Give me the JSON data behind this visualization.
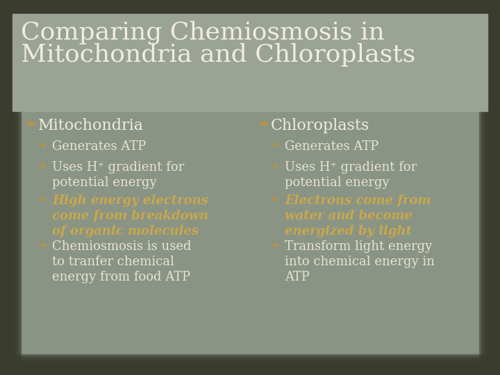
{
  "title_line1": "Comparing Chemiosmosis in",
  "title_line2": "Mitochondria and Chloroplasts",
  "background_color": "#8a9485",
  "border_dark": "#3a3d2e",
  "border_light": "#c8c9b8",
  "title_color": "#f0ece0",
  "bullet_symbol_color": "#b8963c",
  "header_color": "#f0ece0",
  "normal_text_color": "#e8e4d0",
  "italic_text_color": "#c8a84b",
  "left_header": "Mitochondria",
  "right_header": "Chloroplasts",
  "left_bullets": [
    {
      "text": "Generates ATP",
      "italic": false
    },
    {
      "text": "Uses H⁺ gradient for\npotential energy",
      "italic": false
    },
    {
      "text": "High energy electrons\ncome from breakdown\nof organic molecules",
      "italic": true
    },
    {
      "text": "Chemiosmosis is used\nto tranfer chemical\nenergy from food ATP",
      "italic": false
    }
  ],
  "right_bullets": [
    {
      "text": "Generates ATP",
      "italic": false
    },
    {
      "text": "Uses H⁺ gradient for\npotential energy",
      "italic": false
    },
    {
      "text": "Electrons come from\nwater and become\nenergized by light",
      "italic": true
    },
    {
      "text": "Transform light energy\ninto chemical energy in\nATP",
      "italic": false
    }
  ],
  "figsize": [
    7.2,
    5.4
  ],
  "dpi": 100
}
